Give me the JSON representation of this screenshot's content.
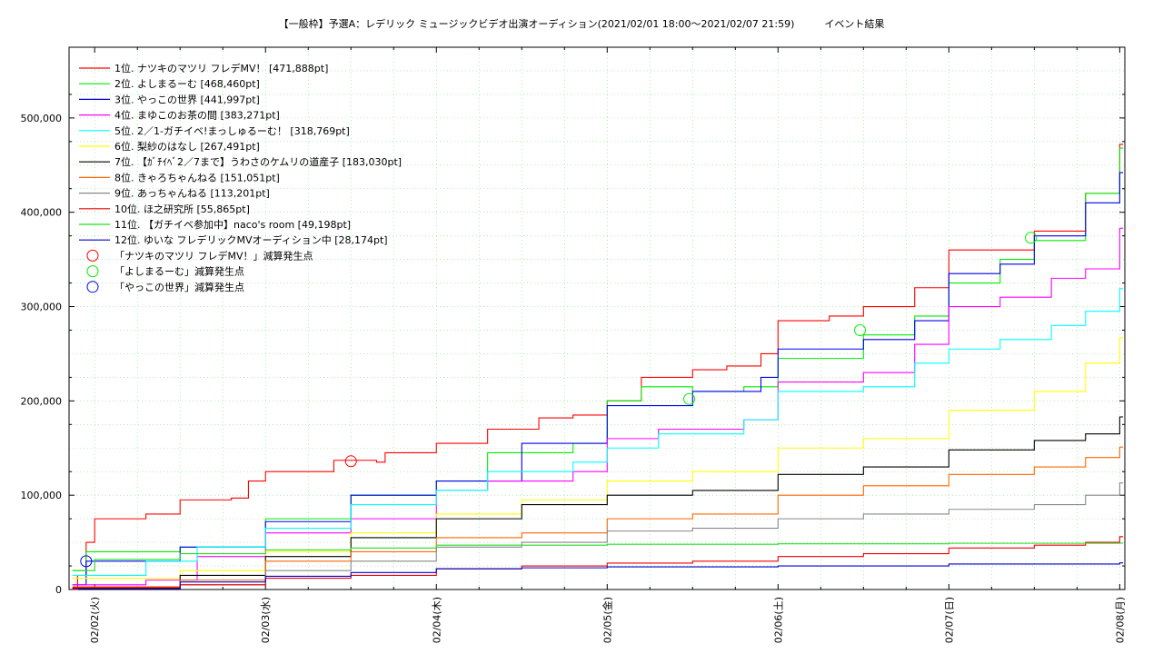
{
  "chart_data": {
    "type": "line",
    "title": "【一般枠】予選A：レデリック ミュージックビデオ出演オーディション(2021/02/01 18:00〜2021/02/07 21:59)　　　イベント結果",
    "xlabel": "",
    "ylabel": "",
    "x_tick_labels": [
      "02/02(火)",
      "02/03(水)",
      "02/04(木)",
      "02/05(金)",
      "02/06(土)",
      "02/07(日)",
      "02/08(月)"
    ],
    "xlim_days": [
      -0.15,
      6.03
    ],
    "ylim": [
      0,
      575000
    ],
    "y_ticks": [
      0,
      100000,
      200000,
      300000,
      400000,
      500000
    ],
    "y_tick_labels": [
      "0",
      "100,000",
      "200,000",
      "300,000",
      "400,000",
      "500,000"
    ],
    "grid": true,
    "legend_position": "top-left",
    "series": [
      {
        "name": "1位. ナツキのマツリ フレデMV！ [471,888pt]",
        "color": "#ff0000",
        "points": [
          [
            -0.13,
            0
          ],
          [
            -0.1,
            15000
          ],
          [
            -0.05,
            50000
          ],
          [
            0,
            75000
          ],
          [
            0.3,
            80000
          ],
          [
            0.5,
            95000
          ],
          [
            0.8,
            97000
          ],
          [
            0.9,
            115000
          ],
          [
            1.0,
            125000
          ],
          [
            1.4,
            137000
          ],
          [
            1.65,
            135000
          ],
          [
            1.7,
            145000
          ],
          [
            2.0,
            155000
          ],
          [
            2.3,
            170000
          ],
          [
            2.6,
            182000
          ],
          [
            2.8,
            185000
          ],
          [
            3.0,
            200000
          ],
          [
            3.2,
            225000
          ],
          [
            3.5,
            233000
          ],
          [
            3.7,
            237000
          ],
          [
            3.9,
            250000
          ],
          [
            4.0,
            285000
          ],
          [
            4.3,
            290000
          ],
          [
            4.5,
            300000
          ],
          [
            4.8,
            320000
          ],
          [
            5.0,
            360000
          ],
          [
            5.2,
            360000
          ],
          [
            5.5,
            380000
          ],
          [
            5.8,
            420000
          ],
          [
            6.0,
            472000
          ]
        ]
      },
      {
        "name": "2位. よしまるーむ [468,460pt]",
        "color": "#00ee00",
        "points": [
          [
            -0.13,
            20000
          ],
          [
            -0.05,
            40000
          ],
          [
            0.5,
            45000
          ],
          [
            1.0,
            75000
          ],
          [
            1.5,
            100000
          ],
          [
            2.0,
            115000
          ],
          [
            2.3,
            145000
          ],
          [
            2.8,
            155000
          ],
          [
            3.0,
            200000
          ],
          [
            3.2,
            215000
          ],
          [
            3.5,
            210000
          ],
          [
            3.8,
            215000
          ],
          [
            4.0,
            245000
          ],
          [
            4.5,
            270000
          ],
          [
            4.8,
            290000
          ],
          [
            5.0,
            325000
          ],
          [
            5.3,
            350000
          ],
          [
            5.5,
            370000
          ],
          [
            5.8,
            420000
          ],
          [
            6.0,
            468000
          ]
        ]
      },
      {
        "name": "3位. やっこの世界 [441,997pt]",
        "color": "#0000ee",
        "points": [
          [
            -0.13,
            5000
          ],
          [
            -0.05,
            30000
          ],
          [
            0.5,
            45000
          ],
          [
            1.0,
            72000
          ],
          [
            1.5,
            100000
          ],
          [
            2.0,
            115000
          ],
          [
            2.5,
            155000
          ],
          [
            3.0,
            195000
          ],
          [
            3.5,
            210000
          ],
          [
            3.9,
            225000
          ],
          [
            4.0,
            255000
          ],
          [
            4.5,
            265000
          ],
          [
            4.8,
            285000
          ],
          [
            5.0,
            335000
          ],
          [
            5.3,
            345000
          ],
          [
            5.5,
            375000
          ],
          [
            5.8,
            410000
          ],
          [
            6.0,
            442000
          ]
        ]
      },
      {
        "name": "4位. まゆこのお茶の間 [383,271pt]",
        "color": "#ff00ff",
        "points": [
          [
            -0.13,
            5000
          ],
          [
            0.3,
            10000
          ],
          [
            0.6,
            35000
          ],
          [
            1.0,
            60000
          ],
          [
            1.5,
            75000
          ],
          [
            2.0,
            105000
          ],
          [
            2.3,
            115000
          ],
          [
            2.8,
            125000
          ],
          [
            3.0,
            160000
          ],
          [
            3.3,
            170000
          ],
          [
            3.8,
            180000
          ],
          [
            4.0,
            220000
          ],
          [
            4.5,
            230000
          ],
          [
            4.8,
            260000
          ],
          [
            5.0,
            300000
          ],
          [
            5.3,
            310000
          ],
          [
            5.6,
            330000
          ],
          [
            5.8,
            340000
          ],
          [
            6.0,
            383000
          ]
        ]
      },
      {
        "name": "5位. 2／1-ガチイベ!まっしゅるーむ！ [318,769pt]",
        "color": "#00ffff",
        "points": [
          [
            -0.13,
            15000
          ],
          [
            0.3,
            30000
          ],
          [
            0.6,
            45000
          ],
          [
            1.0,
            65000
          ],
          [
            1.5,
            90000
          ],
          [
            2.0,
            105000
          ],
          [
            2.3,
            125000
          ],
          [
            2.8,
            135000
          ],
          [
            3.0,
            150000
          ],
          [
            3.3,
            165000
          ],
          [
            3.8,
            180000
          ],
          [
            4.0,
            210000
          ],
          [
            4.5,
            215000
          ],
          [
            4.8,
            240000
          ],
          [
            5.0,
            255000
          ],
          [
            5.3,
            265000
          ],
          [
            5.6,
            280000
          ],
          [
            5.8,
            295000
          ],
          [
            6.0,
            319000
          ]
        ]
      },
      {
        "name": "6位. 梨紗のはなし [267,491pt]",
        "color": "#ffff00",
        "points": [
          [
            -0.13,
            12000
          ],
          [
            0.5,
            20000
          ],
          [
            1.0,
            40000
          ],
          [
            1.5,
            60000
          ],
          [
            2.0,
            80000
          ],
          [
            2.5,
            95000
          ],
          [
            3.0,
            115000
          ],
          [
            3.5,
            125000
          ],
          [
            4.0,
            150000
          ],
          [
            4.5,
            160000
          ],
          [
            5.0,
            190000
          ],
          [
            5.5,
            210000
          ],
          [
            5.8,
            240000
          ],
          [
            6.0,
            267000
          ]
        ]
      },
      {
        "name": "7位. 【ｶﾞﾁｲﾍﾞ2／7まで】うわさのケムリの道産子 [183,030pt]",
        "color": "#000000",
        "points": [
          [
            -0.13,
            2000
          ],
          [
            0.5,
            15000
          ],
          [
            1.0,
            35000
          ],
          [
            1.5,
            55000
          ],
          [
            2.0,
            75000
          ],
          [
            2.5,
            90000
          ],
          [
            3.0,
            100000
          ],
          [
            3.5,
            105000
          ],
          [
            4.0,
            122000
          ],
          [
            4.5,
            130000
          ],
          [
            5.0,
            148000
          ],
          [
            5.5,
            158000
          ],
          [
            5.8,
            165000
          ],
          [
            6.0,
            183000
          ]
        ]
      },
      {
        "name": "8位. きゃろちゃんねる [151,051pt]",
        "color": "#ff6600",
        "points": [
          [
            -0.13,
            3000
          ],
          [
            0.5,
            10000
          ],
          [
            1.0,
            30000
          ],
          [
            1.5,
            40000
          ],
          [
            2.0,
            55000
          ],
          [
            2.5,
            60000
          ],
          [
            3.0,
            75000
          ],
          [
            3.5,
            80000
          ],
          [
            4.0,
            100000
          ],
          [
            4.5,
            110000
          ],
          [
            5.0,
            122000
          ],
          [
            5.5,
            130000
          ],
          [
            5.8,
            140000
          ],
          [
            6.0,
            151000
          ]
        ]
      },
      {
        "name": "9位. あっちゃんねる [113,201pt]",
        "color": "#888888",
        "points": [
          [
            -0.13,
            1000
          ],
          [
            0.5,
            5000
          ],
          [
            1.0,
            20000
          ],
          [
            1.5,
            30000
          ],
          [
            2.0,
            45000
          ],
          [
            2.5,
            50000
          ],
          [
            3.0,
            62000
          ],
          [
            3.5,
            65000
          ],
          [
            4.0,
            75000
          ],
          [
            4.5,
            80000
          ],
          [
            5.0,
            85000
          ],
          [
            5.5,
            90000
          ],
          [
            5.8,
            100000
          ],
          [
            6.0,
            113000
          ]
        ]
      },
      {
        "name": "10位. ほ之研究所 [55,865pt]",
        "color": "#ee0000",
        "points": [
          [
            -0.13,
            2000
          ],
          [
            0.5,
            5000
          ],
          [
            1.0,
            12000
          ],
          [
            1.5,
            15000
          ],
          [
            2.0,
            22000
          ],
          [
            2.5,
            25000
          ],
          [
            3.0,
            28000
          ],
          [
            3.5,
            30000
          ],
          [
            4.0,
            35000
          ],
          [
            4.5,
            38000
          ],
          [
            5.0,
            44000
          ],
          [
            5.5,
            47000
          ],
          [
            5.8,
            50000
          ],
          [
            6.0,
            56000
          ]
        ]
      },
      {
        "name": "11位. 【ガチイベ参加中】naco's room [49,198pt]",
        "color": "#22dd22",
        "points": [
          [
            -0.13,
            20000
          ],
          [
            0.0,
            32000
          ],
          [
            0.5,
            38000
          ],
          [
            1.0,
            42000
          ],
          [
            1.5,
            44000
          ],
          [
            2.0,
            47000
          ],
          [
            3.0,
            48000
          ],
          [
            4.0,
            48500
          ],
          [
            5.0,
            49000
          ],
          [
            6.0,
            49200
          ]
        ]
      },
      {
        "name": "12位. ゆいな フレデリックMVオーディション中 [28,174pt]",
        "color": "#0000cc",
        "points": [
          [
            -0.13,
            1000
          ],
          [
            0.5,
            8000
          ],
          [
            1.0,
            14000
          ],
          [
            1.5,
            18000
          ],
          [
            2.0,
            22000
          ],
          [
            2.5,
            23000
          ],
          [
            3.0,
            24000
          ],
          [
            4.0,
            25000
          ],
          [
            5.0,
            27000
          ],
          [
            6.0,
            28200
          ]
        ]
      }
    ],
    "markers": [
      {
        "name": "「ナツキのマツリ フレデMV！」減算発生点",
        "color": "#ff0000",
        "points": [
          [
            1.5,
            136000
          ]
        ]
      },
      {
        "name": "「よしまるーむ」減算発生点",
        "color": "#00ee00",
        "points": [
          [
            3.48,
            202000
          ],
          [
            4.48,
            275000
          ],
          [
            5.48,
            373000
          ]
        ]
      },
      {
        "name": "「やっこの世界」減算発生点",
        "color": "#0000ee",
        "points": [
          [
            -0.05,
            30000
          ]
        ]
      }
    ]
  }
}
